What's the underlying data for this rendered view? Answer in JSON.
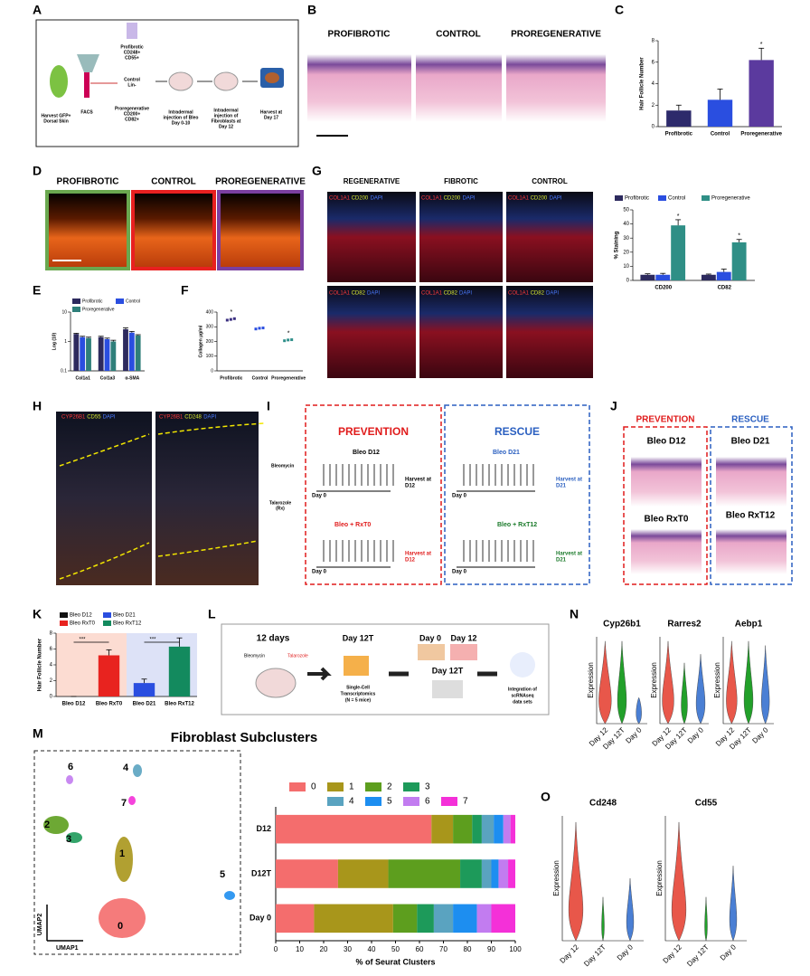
{
  "panels": {
    "labels": [
      "A",
      "B",
      "C",
      "D",
      "E",
      "F",
      "G",
      "H",
      "I",
      "J",
      "K",
      "L",
      "M",
      "N",
      "O"
    ],
    "a": {
      "lines": [
        [
          "Harvest GFP+",
          "Dorsal Skin"
        ],
        [
          "FACS"
        ],
        [
          "Profibrotic",
          "CD248+",
          "CD55+"
        ],
        [
          "Control",
          "Lin-"
        ],
        [
          "Proregenerative",
          "CD200+",
          "CD82+"
        ],
        [
          "Intradermal",
          "injection of Bleo",
          "Day 0-10"
        ],
        [
          "Intradermal",
          "injection of",
          "Fibroblasts at",
          "Day 12"
        ],
        [
          "Harvest at",
          "Day 17"
        ]
      ]
    },
    "b_headers": [
      "PROFIBROTIC",
      "CONTROL",
      "PROREGENERATIVE"
    ],
    "d_headers": [
      "PROFIBROTIC",
      "CONTROL",
      "PROREGENERATIVE"
    ],
    "g_headers": [
      "REGENERATIVE",
      "FIBROTIC",
      "CONTROL"
    ],
    "g_stains": [
      [
        "COL1A1",
        "CD200",
        "DAPI"
      ],
      [
        "COL1A1",
        "CD82",
        "DAPI"
      ]
    ],
    "h_stains": [
      [
        "CYP26B1",
        "CD55",
        "DAPI"
      ],
      [
        "CYP26B1",
        "CD248",
        "DAPI"
      ]
    ],
    "i": {
      "bleomycin": "Bleomycin",
      "talarozole": [
        "Talarozole",
        "(Rx)"
      ],
      "prevention": "PREVENTION",
      "rescue": "RESCUE",
      "groups": [
        "Bleo D12",
        "Bleo + RxT0",
        "Bleo D21",
        "Bleo + RxT12"
      ],
      "day0": "Day 0",
      "harvest": [
        [
          "Harvest at",
          "D12"
        ],
        [
          "Harvest at",
          "D12"
        ],
        [
          "Harvest at",
          "D21"
        ],
        [
          "Harvest at",
          "D21"
        ]
      ]
    },
    "j": {
      "prevention": "PREVENTION",
      "rescue": "RESCUE",
      "groups": [
        "Bleo D12",
        "Bleo D21",
        "Bleo RxT0",
        "Bleo RxT12"
      ]
    },
    "l": {
      "duration": "12 days",
      "bleomycin": "Bleomycin",
      "talarozole": "Talarozole",
      "day12t": "Day 12T",
      "sc": [
        "Single-Cell",
        "Transcriptomics",
        "(N = 5 mice)"
      ],
      "day0": "Day 0",
      "day12": "Day 12",
      "day12t_b": "Day 12T",
      "integration": [
        "Integration of",
        "scRNAseq",
        "data sets"
      ]
    },
    "m": {
      "title": "Fibroblast Subclusters",
      "umap1": "UMAP1",
      "umap2": "UMAP2",
      "clusters": [
        "0",
        "1",
        "2",
        "3",
        "4",
        "5",
        "6",
        "7"
      ]
    },
    "n": {
      "genes": [
        "Cyp26b1",
        "Rarres2",
        "Aebp1"
      ],
      "ylabel": "Expression",
      "groups": [
        "Day 12",
        "Day 12T",
        "Day 0"
      ]
    },
    "o": {
      "genes": [
        "Cd248",
        "Cd55"
      ],
      "ylabel": "Expression",
      "groups": [
        "Day 12",
        "Day 12T",
        "Day 0"
      ]
    }
  },
  "chart_data": [
    {
      "type": "bar",
      "ylabel": "Hair Follicle Number",
      "categories": [
        "Profibrotic",
        "Control",
        "Proregenerative"
      ],
      "values": [
        1.5,
        2.5,
        6.2
      ],
      "errors": [
        0.5,
        1.0,
        1.1
      ],
      "colors": [
        "#2d2a6b",
        "#2a4ee0",
        "#5b3a9e"
      ],
      "markers": [
        null,
        null,
        "*"
      ],
      "ylim": [
        0,
        8
      ],
      "yticks": [
        0,
        2,
        4,
        6,
        8
      ]
    },
    {
      "type": "bar",
      "ylabel": "Log (10)",
      "log": true,
      "categories": [
        "Col1a1",
        "Col1a3",
        "α-SMA"
      ],
      "series": [
        {
          "name": "Profibrotic",
          "color": "#2d2a5e",
          "values": [
            1.8,
            1.4,
            2.6
          ],
          "errors": [
            0.1,
            0.1,
            0.3
          ]
        },
        {
          "name": "Control",
          "color": "#2a4ee0",
          "values": [
            1.4,
            1.2,
            2.0
          ],
          "errors": [
            0.1,
            0.1,
            0.2
          ]
        },
        {
          "name": "Proregenerative",
          "color": "#2f7f7a",
          "values": [
            1.3,
            1.0,
            1.6
          ],
          "errors": [
            0.1,
            0.1,
            0.1
          ]
        }
      ],
      "ylim": [
        0.1,
        10
      ],
      "yticks": [
        0.1,
        1,
        10
      ]
    },
    {
      "type": "scatter",
      "ylabel": "Collagen µg/ml",
      "categories": [
        "Profibrotic",
        "Control",
        "Proregenerative"
      ],
      "values": [
        [
          345,
          350,
          355
        ],
        [
          285,
          290,
          292
        ],
        [
          205,
          210,
          212
        ]
      ],
      "colors": [
        "#3b2f80",
        "#2a4ee0",
        "#2f8f8a"
      ],
      "markers": [
        "*",
        null,
        "*"
      ],
      "ylim": [
        0,
        400
      ],
      "yticks": [
        0,
        100,
        200,
        300,
        400
      ]
    },
    {
      "type": "bar",
      "ylabel": "% Staining",
      "categories": [
        "CD200",
        "CD82"
      ],
      "series": [
        {
          "name": "Profibrotic",
          "color": "#2d2a5e",
          "values": [
            4,
            4
          ],
          "errors": [
            0.7,
            0.5
          ]
        },
        {
          "name": "Control",
          "color": "#2a4ee0",
          "values": [
            4,
            6
          ],
          "errors": [
            1,
            2
          ]
        },
        {
          "name": "Proregenerative",
          "color": "#2f8f86",
          "values": [
            39,
            27
          ],
          "errors": [
            4,
            2
          ],
          "markers": [
            "*",
            "*"
          ]
        }
      ],
      "ylim": [
        0,
        50
      ],
      "yticks": [
        0,
        10,
        20,
        30,
        40,
        50
      ]
    },
    {
      "type": "bar",
      "ylabel": "Hair Follicle Number",
      "legend": true,
      "categories": [
        "Bleo D12",
        "Bleo RxT0",
        "Bleo D21",
        "Bleo RxT12"
      ],
      "values": [
        0,
        5.2,
        1.7,
        6.3
      ],
      "errors": [
        0,
        0.7,
        0.5,
        1.1
      ],
      "colors": [
        "#111111",
        "#e8231f",
        "#2a4ee0",
        "#138a5e"
      ],
      "significance": [
        {
          "categories": [
            "Bleo D12",
            "Bleo RxT0"
          ],
          "label": "***"
        },
        {
          "categories": [
            "Bleo D21",
            "Bleo RxT12"
          ],
          "label": "***"
        }
      ],
      "ylim": [
        0,
        8
      ],
      "yticks": [
        0,
        2,
        4,
        6,
        8
      ]
    },
    {
      "type": "stacked_bar",
      "categories": [
        "D12",
        "D12T",
        "Day 0"
      ],
      "xlabel": "% of Seurat Clusters",
      "series": [
        {
          "name": "0",
          "color": "#f46d6d",
          "values": [
            65,
            26,
            16
          ]
        },
        {
          "name": "1",
          "color": "#a8961b",
          "values": [
            9,
            21,
            33
          ]
        },
        {
          "name": "2",
          "color": "#5d9e1e",
          "values": [
            8,
            30,
            10
          ]
        },
        {
          "name": "3",
          "color": "#1d9a5a",
          "values": [
            4,
            9,
            7
          ]
        },
        {
          "name": "4",
          "color": "#5aa3c0",
          "values": [
            5,
            4,
            8
          ]
        },
        {
          "name": "5",
          "color": "#1d8ef0",
          "values": [
            4,
            3,
            10
          ]
        },
        {
          "name": "6",
          "color": "#c27cf0",
          "values": [
            3,
            4,
            6
          ]
        },
        {
          "name": "7",
          "color": "#f430d8",
          "values": [
            2,
            3,
            10
          ]
        }
      ],
      "xlim": [
        0,
        100
      ],
      "xticks": [
        0,
        10,
        20,
        30,
        40,
        50,
        60,
        70,
        80,
        90,
        100
      ]
    }
  ]
}
